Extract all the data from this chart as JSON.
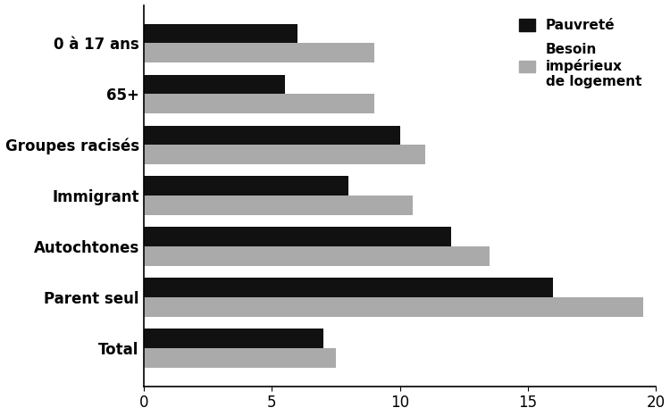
{
  "categories": [
    "Total",
    "Parent seul",
    "Autochtones",
    "Immigrant",
    "Groupes racisés",
    "65+",
    "0 à 17 ans"
  ],
  "pauvrete": [
    7,
    16,
    12,
    8,
    10,
    5.5,
    6
  ],
  "besoin": [
    7.5,
    19.5,
    13.5,
    10.5,
    11,
    9,
    9
  ],
  "pauvrete_color": "#111111",
  "besoin_color": "#aaaaaa",
  "xlim": [
    0,
    20
  ],
  "xticks": [
    0,
    5,
    10,
    15,
    20
  ],
  "bar_height": 0.38,
  "legend_pauvrete": "Pauvreté",
  "legend_besoin": "Besoin\nimpérieux\nde logement",
  "background_color": "#ffffff"
}
